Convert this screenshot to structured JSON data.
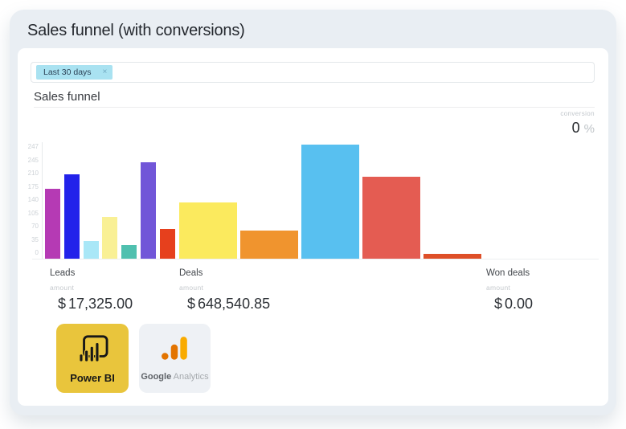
{
  "page": {
    "title": "Sales funnel (with conversions)"
  },
  "filter": {
    "chip_label": "Last 30 days",
    "chip_close": "×"
  },
  "section": {
    "title": "Sales funnel"
  },
  "conversion": {
    "label": "conversion",
    "value": "0",
    "unit": "%"
  },
  "chart_data": {
    "type": "bar",
    "title": "Sales funnel",
    "y_axis_labels": [
      "247",
      "245",
      "210",
      "175",
      "140",
      "105",
      "70",
      "35",
      "0"
    ],
    "ylim": [
      0,
      290
    ],
    "grid": "off",
    "legend": "none",
    "groups": [
      {
        "name": "Leads",
        "values": [
          175,
          210,
          45,
          105,
          35,
          240,
          75
        ],
        "colors": [
          "#b53ab4",
          "#2222ea",
          "#a9e7f7",
          "#f9f095",
          "#4fc0af",
          "#7156d8",
          "#e6401d"
        ]
      },
      {
        "name": "Deals",
        "values": [
          140,
          70,
          284,
          205,
          12
        ],
        "colors": [
          "#fbea5e",
          "#f0942e",
          "#58c0f0",
          "#e45c52",
          "#de4f28"
        ]
      },
      {
        "name": "Won deals",
        "values": [],
        "colors": []
      }
    ]
  },
  "stats": [
    {
      "label": "Leads",
      "sublabel": "amount",
      "currency": "$",
      "value": "17,325.00"
    },
    {
      "label": "Deals",
      "sublabel": "amount",
      "currency": "$",
      "value": "648,540.85"
    },
    {
      "label": "Won deals",
      "sublabel": "amount",
      "currency": "$",
      "value": "0.00"
    }
  ],
  "integrations": [
    {
      "label": "Power BI",
      "bg_color": "#e9c53c"
    },
    {
      "label_primary": "Google",
      "label_secondary": " Analytics",
      "bg_color": "#eef1f5",
      "logo_colors": {
        "tall_bar": "#f9ab00",
        "mid_bar": "#e37400",
        "dot": "#e37400"
      }
    }
  ],
  "colors": {
    "panel_bg": "#e9eef3",
    "card_bg": "#ffffff",
    "chip_bg": "#a9e2f1",
    "axis_label": "#ccd1d6"
  }
}
